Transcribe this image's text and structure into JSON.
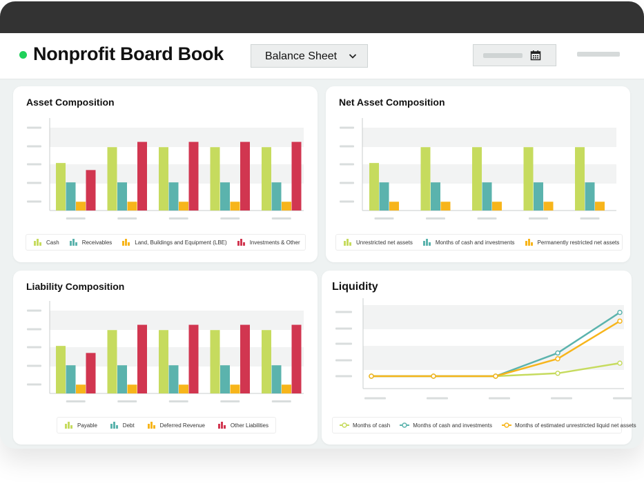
{
  "app": {
    "title": "Nonprofit Board Book"
  },
  "report_select": {
    "value": "Balance Sheet"
  },
  "colors": {
    "green": "#c6db5e",
    "teal": "#5bb3ad",
    "orange": "#f7b51b",
    "red": "#d13650",
    "status_dot": "#1fd15a"
  },
  "cards": {
    "asset": {
      "title": "Asset Composition"
    },
    "net_asset": {
      "title": "Net Asset Composition"
    },
    "liability": {
      "title": "Liability Composition"
    },
    "liquidity": {
      "title": "Liquidity"
    }
  },
  "chart_data": [
    {
      "id": "asset",
      "type": "bar",
      "title": "Asset Composition",
      "categories": [
        "",
        "",
        "",
        "",
        ""
      ],
      "ylim": [
        0,
        5
      ],
      "series": [
        {
          "name": "Cash",
          "color": "green",
          "values": [
            2.7,
            3.6,
            3.6,
            3.6,
            3.6
          ]
        },
        {
          "name": "Receivables",
          "color": "teal",
          "values": [
            1.6,
            1.6,
            1.6,
            1.6,
            1.6
          ]
        },
        {
          "name": "Land, Buildings and Equipment (LBE)",
          "color": "orange",
          "values": [
            0.5,
            0.5,
            0.5,
            0.5,
            0.5
          ]
        },
        {
          "name": "Investments & Other",
          "color": "red",
          "values": [
            2.3,
            3.9,
            3.9,
            3.9,
            3.9
          ]
        }
      ]
    },
    {
      "id": "net_asset",
      "type": "bar",
      "title": "Net Asset Composition",
      "categories": [
        "",
        "",
        "",
        "",
        ""
      ],
      "ylim": [
        0,
        5
      ],
      "series": [
        {
          "name": "Unrestricted net assets",
          "color": "green",
          "values": [
            2.7,
            3.6,
            3.6,
            3.6,
            3.6
          ]
        },
        {
          "name": "Months of cash and investments",
          "color": "teal",
          "values": [
            1.6,
            1.6,
            1.6,
            1.6,
            1.6
          ]
        },
        {
          "name": "Permanently restricted net assets",
          "color": "orange",
          "values": [
            0.5,
            0.5,
            0.5,
            0.5,
            0.5
          ]
        }
      ]
    },
    {
      "id": "liability",
      "type": "bar",
      "title": "Liability Composition",
      "categories": [
        "",
        "",
        "",
        "",
        ""
      ],
      "ylim": [
        0,
        5
      ],
      "series": [
        {
          "name": "Payable",
          "color": "green",
          "values": [
            2.7,
            3.6,
            3.6,
            3.6,
            3.6
          ]
        },
        {
          "name": "Debt",
          "color": "teal",
          "values": [
            1.6,
            1.6,
            1.6,
            1.6,
            1.6
          ]
        },
        {
          "name": "Deferred Revenue",
          "color": "orange",
          "values": [
            0.5,
            0.5,
            0.5,
            0.5,
            0.5
          ]
        },
        {
          "name": "Other Liabilities",
          "color": "red",
          "values": [
            2.3,
            3.9,
            3.9,
            3.9,
            3.9
          ]
        }
      ]
    },
    {
      "id": "liquidity",
      "type": "line",
      "title": "Liquidity",
      "x": [
        1,
        2,
        3,
        4,
        5
      ],
      "ylim": [
        0,
        5
      ],
      "series": [
        {
          "name": "Months of cash",
          "color": "green",
          "values": [
            0,
            0,
            0,
            0.2,
            0.9
          ]
        },
        {
          "name": "Months of cash and investments",
          "color": "teal",
          "values": [
            0,
            0,
            0,
            1.6,
            4.4
          ]
        },
        {
          "name": "Months of estimated unrestricted liquid net assets",
          "color": "orange",
          "values": [
            0,
            0,
            0,
            1.2,
            3.8
          ]
        }
      ]
    }
  ]
}
